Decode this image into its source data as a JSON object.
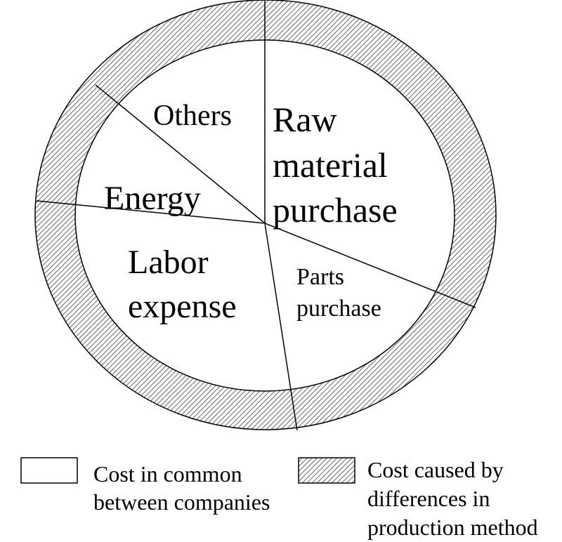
{
  "diagram": {
    "segments": [
      {
        "id": "raw",
        "lines": [
          "Raw",
          "material",
          "purchase"
        ]
      },
      {
        "id": "parts",
        "lines": [
          "Parts",
          "purchase"
        ]
      },
      {
        "id": "labor",
        "lines": [
          "Labor",
          "expense"
        ]
      },
      {
        "id": "energy",
        "lines": [
          "Energy"
        ]
      },
      {
        "id": "others",
        "lines": [
          "Others"
        ]
      }
    ],
    "colors": {
      "line": "#000000",
      "hatch": "#555555",
      "background": "#ffffff"
    }
  },
  "legend": {
    "common": {
      "lines": [
        "Cost in common",
        "between companies"
      ],
      "swatch": "plain"
    },
    "differences": {
      "lines": [
        "Cost caused by",
        "differences in",
        "production method"
      ],
      "swatch": "hatched"
    }
  }
}
